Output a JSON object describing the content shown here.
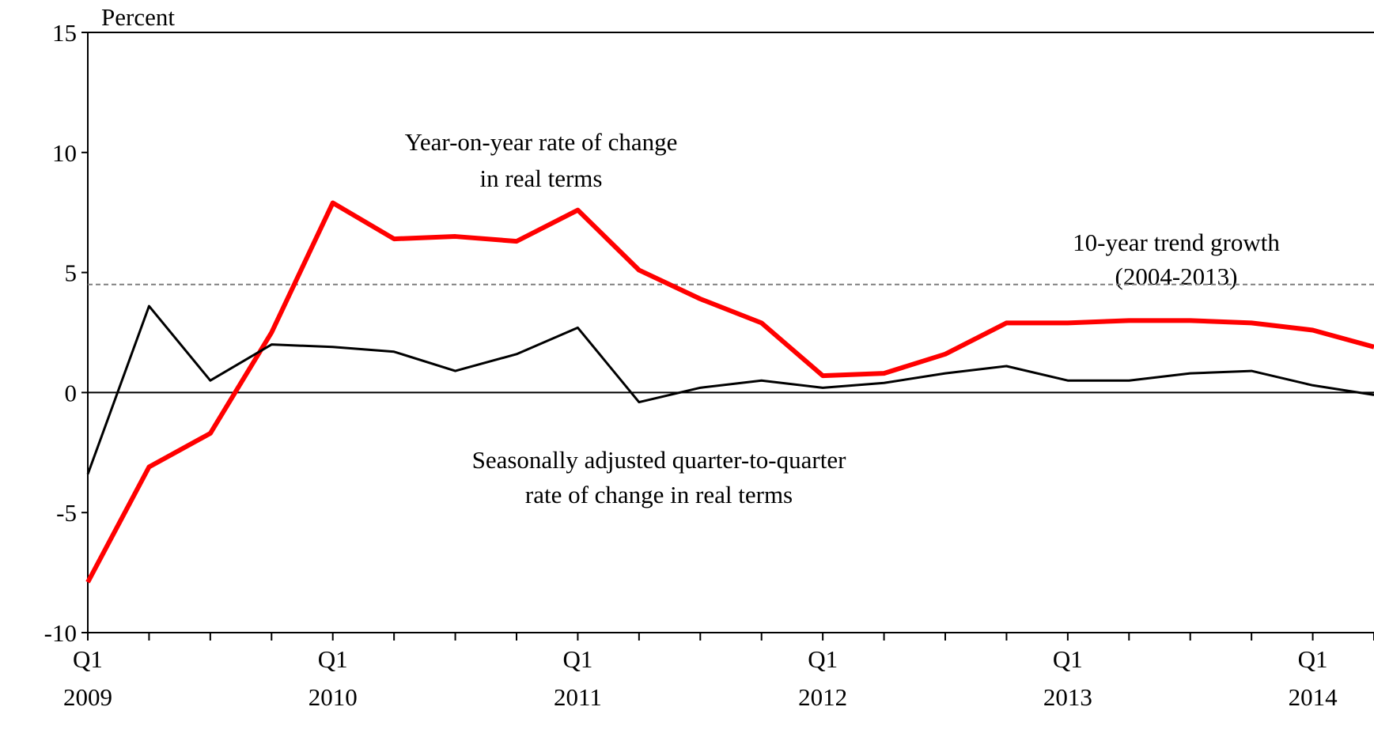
{
  "chart_data": {
    "type": "line",
    "ylabel": "Percent",
    "categories": [
      "Q1 2009",
      null,
      null,
      null,
      "Q1 2010",
      null,
      null,
      null,
      "Q1 2011",
      null,
      null,
      null,
      "Q1 2012",
      null,
      null,
      null,
      "Q1 2013",
      null,
      null,
      null,
      "Q1 2014",
      null
    ],
    "series": [
      {
        "name": "Year-on-year rate of change in real terms",
        "color": "#ff0000",
        "width": 6,
        "values": [
          -7.9,
          -3.1,
          -1.7,
          2.5,
          7.9,
          6.4,
          6.5,
          6.3,
          7.6,
          5.1,
          3.9,
          2.9,
          0.7,
          0.8,
          1.6,
          2.9,
          2.9,
          3.0,
          3.0,
          2.9,
          2.6,
          1.9
        ]
      },
      {
        "name": "Seasonally adjusted quarter-to-quarter rate of change in real terms",
        "color": "#000000",
        "width": 3,
        "values": [
          -3.4,
          3.6,
          0.5,
          2.0,
          1.9,
          1.7,
          0.9,
          1.6,
          2.7,
          -0.4,
          0.2,
          0.5,
          0.2,
          0.4,
          0.8,
          1.1,
          0.5,
          0.5,
          0.8,
          0.9,
          0.3,
          -0.1
        ]
      }
    ],
    "reference_line": {
      "value": 4.5,
      "color": "#808080",
      "dashed": true
    },
    "annotations": [
      [
        "Year-on-year rate of change",
        "in real terms"
      ],
      [
        "10-year trend growth",
        "(2004-2013)"
      ],
      [
        "Seasonally adjusted quarter-to-quarter",
        "rate of change in real terms"
      ]
    ],
    "ylim": [
      -10,
      15
    ],
    "yticks": [
      -10,
      -5,
      0,
      5,
      10,
      15
    ]
  }
}
